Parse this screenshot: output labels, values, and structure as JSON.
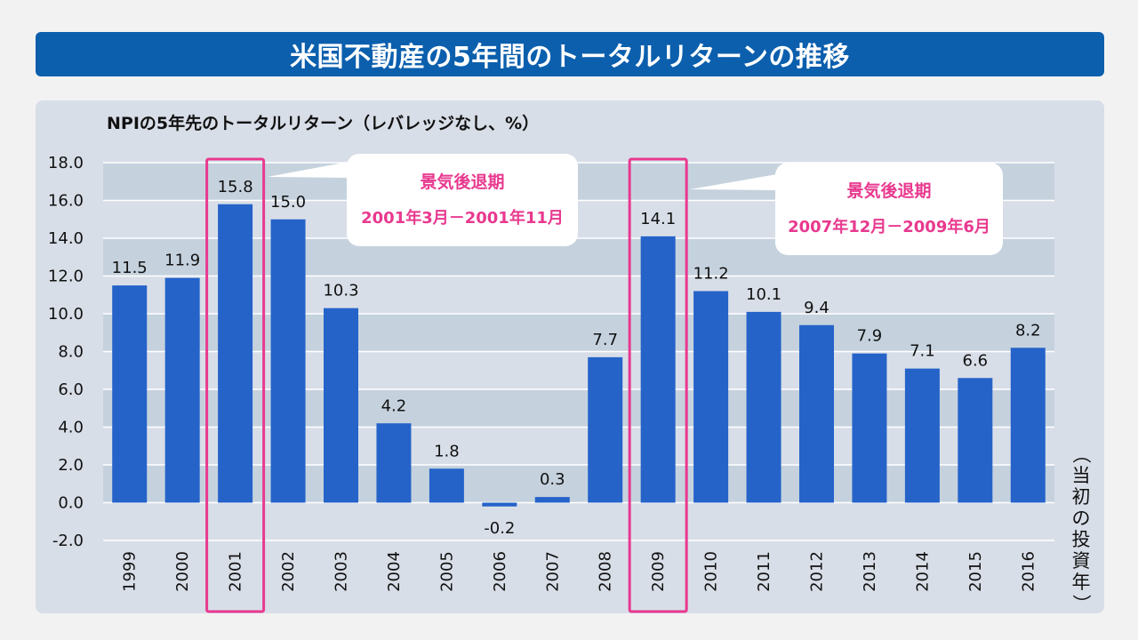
{
  "title": "米国不動産の5年間のトータルリターンの推移",
  "chart_data": {
    "type": "bar",
    "subtitle": "NPIの5年先のトータルリターン（レバレッジなし、%）",
    "categories": [
      "1999",
      "2000",
      "2001",
      "2002",
      "2003",
      "2004",
      "2005",
      "2006",
      "2007",
      "2008",
      "2009",
      "2010",
      "2011",
      "2012",
      "2013",
      "2014",
      "2015",
      "2016"
    ],
    "values": [
      11.5,
      11.9,
      15.8,
      15.0,
      10.3,
      4.2,
      1.8,
      -0.2,
      0.3,
      7.7,
      14.1,
      11.2,
      10.1,
      9.4,
      7.9,
      7.1,
      6.6,
      8.2
    ],
    "value_labels": [
      "11.5",
      "11.9",
      "15.8",
      "15.0",
      "10.3",
      "4.2",
      "1.8",
      "-0.2",
      "0.3",
      "7.7",
      "14.1",
      "11.2",
      "10.1",
      "9.4",
      "7.9",
      "7.1",
      "6.6",
      "8.2"
    ],
    "ylim": [
      -2,
      18
    ],
    "yticks": [
      "-2.0",
      "0.0",
      "2.0",
      "4.0",
      "6.0",
      "8.0",
      "10.0",
      "12.0",
      "14.0",
      "16.0",
      "18.0"
    ],
    "xlabel": "（当初の投資年）",
    "highlighted_categories": [
      "2001",
      "2009"
    ],
    "annotations": [
      {
        "title": "景気後退期",
        "range": "2001年3月－2001年11月",
        "target": "2001"
      },
      {
        "title": "景気後退期",
        "range": "2007年12月－2009年6月",
        "target": "2009"
      }
    ],
    "colors": {
      "bar": "#2563c9",
      "highlight": "#e8398f",
      "band": "#c5d2de",
      "banner": "#0b5fad"
    }
  }
}
